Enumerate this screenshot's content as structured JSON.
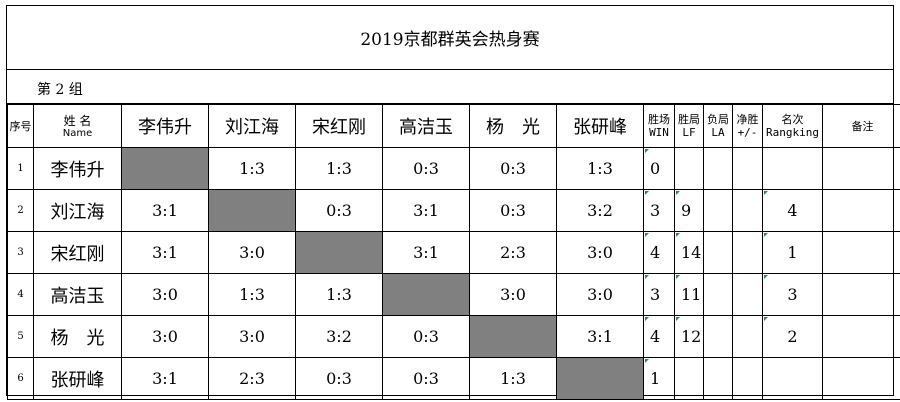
{
  "title": "2019京都群英会热身赛",
  "group": "第 2 组",
  "header": {
    "seq": "序号",
    "name_cn": "姓    名",
    "name_en": "Name",
    "players": [
      "李伟升",
      "刘江海",
      "宋红刚",
      "高洁玉",
      "杨　光",
      "张研峰"
    ],
    "win": [
      "胜场",
      "WIN"
    ],
    "lf": [
      "胜局",
      "LF"
    ],
    "la": [
      "负局",
      "LA"
    ],
    "net": [
      "净胜",
      "+/-"
    ],
    "rank": [
      "名次",
      "Rangking"
    ],
    "note": "备注"
  },
  "rows": [
    {
      "idx": "1",
      "name": "李伟升",
      "scores": [
        "",
        "1:3",
        "1:3",
        "0:3",
        "0:3",
        "1:3"
      ],
      "win": "0",
      "lf": "",
      "la": "",
      "net": "",
      "rank": "",
      "note": ""
    },
    {
      "idx": "2",
      "name": "刘江海",
      "scores": [
        "3:1",
        "",
        "0:3",
        "3:1",
        "0:3",
        "3:2"
      ],
      "win": "3",
      "lf": "9",
      "la": "",
      "net": "",
      "rank": "4",
      "note": ""
    },
    {
      "idx": "3",
      "name": "宋红刚",
      "scores": [
        "3:1",
        "3:0",
        "",
        "3:1",
        "2:3",
        "3:0"
      ],
      "win": "4",
      "lf": "14",
      "la": "",
      "net": "",
      "rank": "1",
      "note": ""
    },
    {
      "idx": "4",
      "name": "高洁玉",
      "scores": [
        "3:0",
        "1:3",
        "1:3",
        "",
        "3:0",
        "3:0"
      ],
      "win": "3",
      "lf": "11",
      "la": "",
      "net": "",
      "rank": "3",
      "note": ""
    },
    {
      "idx": "5",
      "name": "杨　光",
      "scores": [
        "3:0",
        "3:0",
        "3:2",
        "0:3",
        "",
        "3:1"
      ],
      "win": "4",
      "lf": "12",
      "la": "",
      "net": "",
      "rank": "2",
      "note": ""
    },
    {
      "idx": "6",
      "name": "张研峰",
      "scores": [
        "3:1",
        "2:3",
        "0:3",
        "0:3",
        "1:3",
        ""
      ],
      "win": "1",
      "lf": "",
      "la": "",
      "net": "",
      "rank": "",
      "note": ""
    }
  ],
  "colors": {
    "shade": "#808080",
    "border": "#000000",
    "marker": "#2e8b57"
  }
}
